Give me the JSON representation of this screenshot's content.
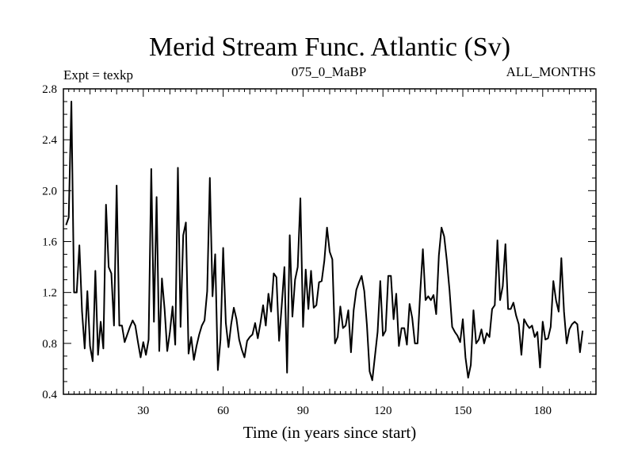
{
  "chart_data": {
    "type": "line",
    "title": "Merid Stream Func. Atlantic (Sv)",
    "subtitle_left": "Expt = texkp",
    "subtitle_center": "075_0_MaBP",
    "subtitle_right": "ALL_MONTHS",
    "xlabel": "Time (in years since start)",
    "ylabel": "",
    "xlim": [
      0,
      200
    ],
    "ylim": [
      0.4,
      2.8
    ],
    "xticks": [
      30,
      60,
      90,
      120,
      150,
      180
    ],
    "xtick_labels": [
      "30",
      "60",
      "90",
      "120",
      "150",
      "180"
    ],
    "yticks": [
      0.4,
      0.8,
      1.2,
      1.6,
      2.0,
      2.4,
      2.8
    ],
    "ytick_labels": [
      "0.4",
      "0.8",
      "1.2",
      "1.6",
      "2.0",
      "2.4",
      "2.8"
    ],
    "series": [
      {
        "name": "Merid Stream Func. Atlantic",
        "x_start": 1,
        "x_step": 1,
        "values": [
          1.73,
          1.79,
          2.7,
          1.2,
          1.2,
          1.57,
          1.05,
          0.76,
          1.21,
          0.78,
          0.66,
          1.37,
          0.71,
          0.97,
          0.76,
          1.89,
          1.4,
          1.35,
          0.94,
          2.04,
          0.94,
          0.94,
          0.81,
          0.87,
          0.93,
          0.98,
          0.94,
          0.81,
          0.69,
          0.81,
          0.71,
          0.83,
          2.17,
          0.97,
          1.95,
          0.74,
          1.31,
          1.07,
          0.74,
          0.89,
          1.09,
          0.79,
          2.18,
          0.93,
          1.65,
          1.75,
          0.72,
          0.85,
          0.67,
          0.78,
          0.87,
          0.94,
          0.98,
          1.21,
          2.1,
          1.17,
          1.5,
          0.59,
          0.83,
          1.55,
          0.96,
          0.77,
          0.95,
          1.08,
          0.99,
          0.83,
          0.75,
          0.69,
          0.82,
          0.85,
          0.87,
          0.96,
          0.84,
          0.96,
          1.1,
          0.94,
          1.19,
          1.05,
          1.35,
          1.32,
          0.82,
          1.1,
          1.4,
          0.57,
          1.65,
          1.01,
          1.3,
          1.4,
          1.94,
          0.93,
          1.38,
          1.07,
          1.37,
          1.08,
          1.1,
          1.28,
          1.29,
          1.45,
          1.71,
          1.52,
          1.46,
          0.8,
          0.85,
          1.09,
          0.92,
          0.94,
          1.06,
          0.73,
          1.06,
          1.22,
          1.28,
          1.33,
          1.21,
          0.94,
          0.58,
          0.51,
          0.7,
          0.89,
          1.29,
          0.86,
          0.9,
          1.33,
          1.33,
          0.99,
          1.19,
          0.78,
          0.92,
          0.92,
          0.79,
          1.11,
          1.0,
          0.8,
          0.8,
          1.2,
          1.54,
          1.14,
          1.17,
          1.14,
          1.18,
          1.03,
          1.49,
          1.71,
          1.64,
          1.45,
          1.22,
          0.93,
          0.89,
          0.86,
          0.81,
          0.99,
          0.69,
          0.53,
          0.63,
          1.06,
          0.8,
          0.83,
          0.91,
          0.8,
          0.88,
          0.85,
          1.07,
          1.1,
          1.61,
          1.14,
          1.25,
          1.58,
          1.07,
          1.07,
          1.12,
          1.02,
          0.95,
          0.71,
          0.99,
          0.95,
          0.92,
          0.94,
          0.85,
          0.89,
          0.61,
          0.97,
          0.83,
          0.84,
          0.93,
          1.29,
          1.14,
          1.05,
          1.47,
          1.05,
          0.8,
          0.91,
          0.95,
          0.97,
          0.95,
          0.73,
          0.9
        ]
      }
    ],
    "grid": false,
    "legend": "none"
  }
}
